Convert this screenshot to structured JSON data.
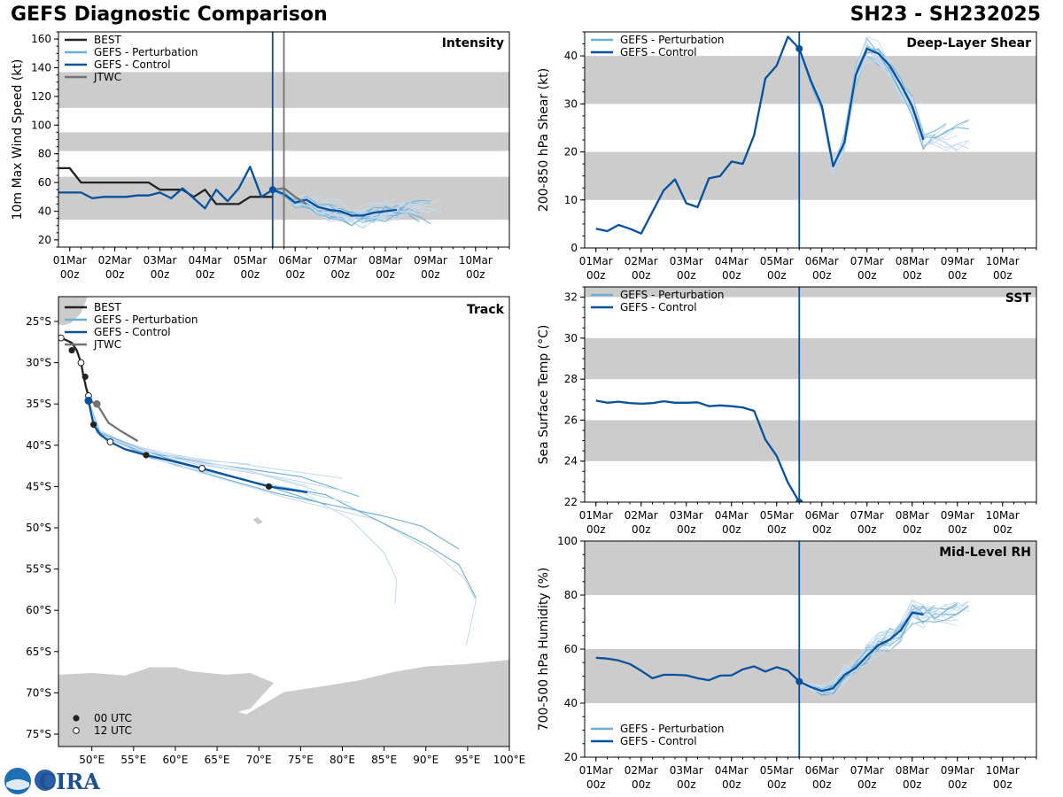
{
  "figure": {
    "title_left": "GEFS Diagnostic Comparison",
    "title_right": "SH23 - SH232025",
    "logo_text": "CIRA"
  },
  "colors": {
    "best": "#222222",
    "perturbation": "#6baed6",
    "perturbation_light": "#c6dbef",
    "control": "#08519c",
    "jtwc": "#737373",
    "band": "#cccccc",
    "land": "#cccccc",
    "vline_control": "#08519c",
    "vline_jtwc": "#737373"
  },
  "time_axis": {
    "ticks": [
      "01Mar\n00z",
      "02Mar\n00z",
      "03Mar\n00z",
      "04Mar\n00z",
      "05Mar\n00z",
      "06Mar\n00z",
      "07Mar\n00z",
      "08Mar\n00z",
      "09Mar\n00z",
      "10Mar\n00z"
    ],
    "xlim": [
      -0.25,
      9.75
    ],
    "init_time": 4.5,
    "jtwc_time": 4.75
  },
  "chart_data": [
    {
      "id": "intensity",
      "type": "line",
      "title": "Intensity",
      "ylabel": "10m Max Wind Speed (kt)",
      "ylim": [
        15,
        165
      ],
      "yticks": [
        20,
        40,
        60,
        80,
        100,
        120,
        140,
        160
      ],
      "bands": [
        [
          34,
          64
        ],
        [
          82,
          95
        ],
        [
          112,
          137
        ]
      ],
      "legend": [
        "BEST",
        "GEFS - Perturbation",
        "GEFS - Control",
        "JTWC"
      ],
      "series": [
        {
          "name": "BEST",
          "x": [
            -0.25,
            0,
            0.25,
            0.5,
            0.75,
            1,
            1.25,
            1.5,
            1.75,
            2,
            2.25,
            2.5,
            2.75,
            3,
            3.25,
            3.5,
            3.75,
            4,
            4.25,
            4.5
          ],
          "y": [
            70,
            70,
            60,
            60,
            60,
            60,
            60,
            60,
            60,
            55,
            55,
            55,
            50,
            55,
            45,
            45,
            45,
            50,
            50,
            50
          ]
        },
        {
          "name": "GEFS - Control",
          "x": [
            -0.25,
            0,
            0.25,
            0.5,
            0.75,
            1,
            1.25,
            1.5,
            1.75,
            2,
            2.25,
            2.5,
            2.75,
            3,
            3.25,
            3.5,
            3.75,
            4,
            4.25,
            4.5,
            4.75,
            5,
            5.25,
            5.5,
            5.75,
            6,
            6.25,
            6.5,
            6.75,
            7,
            7.25
          ],
          "y": [
            53,
            53,
            53,
            49,
            50,
            50,
            50,
            51,
            51,
            53,
            49,
            56,
            49,
            42,
            55,
            47,
            56,
            71,
            50,
            55,
            52,
            46,
            48,
            43,
            41,
            40,
            37,
            37,
            39,
            40,
            41
          ]
        },
        {
          "name": "JTWC",
          "x": [
            4.5,
            4.75,
            5,
            5.25
          ],
          "y": [
            55,
            56,
            50,
            45
          ]
        }
      ],
      "perturbation_count": 20
    },
    {
      "id": "shear",
      "type": "line",
      "title": "Deep-Layer Shear",
      "ylabel": "200-850 hPa Shear (kt)",
      "ylim": [
        0,
        45
      ],
      "yticks": [
        0,
        10,
        20,
        30,
        40
      ],
      "bands": [
        [
          10,
          20
        ],
        [
          30,
          40
        ]
      ],
      "legend": [
        "GEFS - Perturbation",
        "GEFS - Control"
      ],
      "series": [
        {
          "name": "GEFS - Control",
          "x": [
            0,
            0.25,
            0.5,
            0.75,
            1,
            1.25,
            1.5,
            1.75,
            2,
            2.25,
            2.5,
            2.75,
            3,
            3.25,
            3.5,
            3.75,
            4,
            4.25,
            4.5,
            4.75,
            5,
            5.25,
            5.5,
            5.75,
            6,
            6.25,
            6.5,
            6.75,
            7,
            7.25
          ],
          "y": [
            4,
            3.5,
            4.8,
            4,
            3,
            7.5,
            12,
            14.3,
            9.3,
            8.5,
            14.5,
            15,
            18,
            17.5,
            23.5,
            35.3,
            38,
            44,
            41.5,
            35,
            29.5,
            17,
            22,
            36,
            41.5,
            40.5,
            38,
            34,
            29.5,
            22.5
          ]
        }
      ],
      "perturbation_count": 20
    },
    {
      "id": "sst",
      "type": "line",
      "title": "SST",
      "ylabel": "Sea Surface Temp (°C)",
      "ylim": [
        22,
        32.5
      ],
      "yticks": [
        22,
        24,
        26,
        28,
        30,
        32
      ],
      "bands": [
        [
          24,
          26
        ],
        [
          28,
          30
        ],
        [
          32,
          32.5
        ]
      ],
      "legend": [
        "GEFS - Perturbation",
        "GEFS - Control"
      ],
      "series": [
        {
          "name": "GEFS - Control",
          "x": [
            0,
            0.25,
            0.5,
            0.75,
            1,
            1.25,
            1.5,
            1.75,
            2,
            2.25,
            2.5,
            2.75,
            3,
            3.25,
            3.5,
            3.75,
            4,
            4.25,
            4.5
          ],
          "y": [
            26.95,
            26.85,
            26.9,
            26.83,
            26.8,
            26.83,
            26.92,
            26.85,
            26.85,
            26.87,
            26.68,
            26.72,
            26.68,
            26.62,
            26.45,
            25.05,
            24.25,
            22.95,
            22
          ]
        }
      ]
    },
    {
      "id": "rh",
      "type": "line",
      "title": "Mid-Level RH",
      "ylabel": "700-500 hPa Humidity (%)",
      "ylim": [
        20,
        100
      ],
      "yticks": [
        20,
        40,
        60,
        80,
        100
      ],
      "bands": [
        [
          40,
          60
        ],
        [
          80,
          100
        ]
      ],
      "legend": [
        "GEFS - Perturbation",
        "GEFS - Control"
      ],
      "series": [
        {
          "name": "GEFS - Control",
          "x": [
            0,
            0.25,
            0.5,
            0.75,
            1,
            1.25,
            1.5,
            1.75,
            2,
            2.25,
            2.5,
            2.75,
            3,
            3.25,
            3.5,
            3.75,
            4,
            4.25,
            4.5,
            4.75,
            5,
            5.25,
            5.5,
            5.75,
            6,
            6.25,
            6.5,
            6.75,
            7,
            7.25
          ],
          "y": [
            56.8,
            56.5,
            55.8,
            54.5,
            52,
            49.2,
            50.5,
            50.5,
            50.3,
            49.2,
            48.5,
            50.2,
            50.3,
            52.5,
            53.6,
            51.7,
            53.3,
            52,
            48,
            46,
            44.5,
            45.5,
            50.5,
            53,
            57.5,
            61.5,
            63.5,
            67,
            73.5,
            72.8
          ]
        }
      ],
      "perturbation_count": 20
    },
    {
      "id": "track",
      "type": "map",
      "title": "Track",
      "xlim": [
        46,
        100
      ],
      "ylim": [
        -76.5,
        -22
      ],
      "xticks": [
        50,
        55,
        60,
        65,
        70,
        75,
        80,
        85,
        90,
        95,
        100
      ],
      "xticklabels": [
        "50°E",
        "55°E",
        "60°E",
        "65°E",
        "70°E",
        "75°E",
        "80°E",
        "85°E",
        "90°E",
        "95°E",
        "100°E"
      ],
      "yticks": [
        -25,
        -30,
        -35,
        -40,
        -45,
        -50,
        -55,
        -60,
        -65,
        -70,
        -75
      ],
      "yticklabels": [
        "25°S",
        "30°S",
        "35°S",
        "40°S",
        "45°S",
        "50°S",
        "55°S",
        "60°S",
        "65°S",
        "70°S",
        "75°S"
      ],
      "legend": [
        "BEST",
        "GEFS - Perturbation",
        "GEFS - Control",
        "JTWC"
      ],
      "marker_legend": [
        "00 UTC",
        "12 UTC"
      ],
      "series": [
        {
          "name": "BEST",
          "lon": [
            46.3,
            47.0,
            47.6,
            48.2,
            48.7,
            49.0,
            49.2,
            49.3,
            49.6,
            49.7
          ],
          "lat": [
            -27.0,
            -27.3,
            -27.6,
            -28.5,
            -30.0,
            -31.7,
            -32.5,
            -33.0,
            -34.0,
            -34.6
          ]
        },
        {
          "name": "GEFS - Control",
          "lon": [
            49.6,
            50.2,
            51.0,
            52.2,
            54.0,
            56.5,
            60.0,
            63.2,
            66.5,
            71.2,
            75.8
          ],
          "lat": [
            -34.6,
            -37.5,
            -38.7,
            -39.6,
            -40.5,
            -41.2,
            -42.0,
            -42.8,
            -43.7,
            -45.0,
            -45.7
          ]
        },
        {
          "name": "JTWC",
          "lon": [
            49.6,
            50.6,
            52.0,
            53.5,
            55.5
          ],
          "lat": [
            -34.6,
            -35.0,
            -37.3,
            -38.3,
            -39.5
          ]
        }
      ],
      "markers_00utc": [
        [
          47.6,
          -28.5
        ],
        [
          49.2,
          -31.7
        ],
        [
          50.2,
          -37.5
        ],
        [
          56.5,
          -41.2
        ],
        [
          71.2,
          -45.0
        ]
      ],
      "markers_12utc": [
        [
          46.3,
          -27.0
        ],
        [
          48.7,
          -30.0
        ],
        [
          49.6,
          -34.0
        ],
        [
          52.2,
          -39.6
        ],
        [
          63.2,
          -42.8
        ]
      ]
    }
  ]
}
